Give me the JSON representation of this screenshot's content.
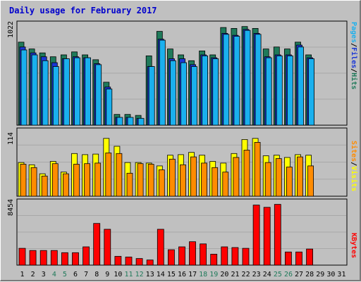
{
  "title": "Daily usage for February 2017",
  "colors": {
    "background": "#c0c0c0",
    "hits": "#1f7a5a",
    "files": "#1a37d6",
    "pages": "#1ab0ee",
    "sites": "#ff8c00",
    "visits": "#ffff00",
    "kbytes": "#ff0000",
    "weekday_label": "#000000",
    "weekend_label": "#1f7a5a"
  },
  "chart_data": [
    {
      "type": "bar",
      "name": "hits-files-pages",
      "ymax_label": "1022",
      "legend": [
        "Pages",
        "/",
        "Files",
        "/",
        "Hits"
      ],
      "series": [
        {
          "name": "Hits",
          "values": [
            850,
            780,
            740,
            700,
            720,
            750,
            720,
            670,
            440,
            110,
            110,
            100,
            100,
            0,
            0,
            0,
            0,
            0,
            0,
            0,
            0,
            0,
            0,
            0,
            0,
            0,
            0,
            0
          ]
        },
        {
          "name": "Files",
          "values": [
            800,
            740,
            700,
            640,
            680,
            700,
            690,
            630,
            390,
            80,
            80,
            70,
            70,
            0,
            0,
            0,
            0,
            0,
            0,
            0,
            0,
            0,
            0,
            0,
            0,
            0,
            0,
            0
          ]
        },
        {
          "name": "Pages",
          "values": [
            770,
            720,
            660,
            600,
            680,
            690,
            690,
            620,
            370,
            80,
            80,
            70,
            70,
            0,
            0,
            0,
            0,
            0,
            0,
            0,
            0,
            0,
            0,
            0,
            0,
            0,
            0,
            0
          ]
        }
      ],
      "extra": {
        "hits_tail": [
          710,
          960,
          780,
          720,
          660,
          760,
          720,
          1000,
          990,
          1010,
          990,
          780,
          800,
          780,
          850,
          720
        ],
        "files_tail": [
          600,
          880,
          680,
          680,
          620,
          720,
          690,
          940,
          920,
          980,
          940,
          700,
          720,
          720,
          820,
          690
        ],
        "pages_tail": [
          600,
          870,
          660,
          640,
          600,
          710,
          680,
          930,
          910,
          970,
          930,
          690,
          710,
          710,
          800,
          680
        ]
      }
    },
    {
      "type": "bar",
      "name": "sites-visits",
      "ymax_label": "114",
      "legend": [
        "Sites",
        "/",
        "Visits"
      ],
      "series": [
        {
          "name": "Visits",
          "values": [
            60,
            56,
            40,
            62,
            43,
            76,
            74,
            75,
            103,
            89,
            60,
            60,
            59,
            54,
            73,
            74,
            78,
            73,
            62,
            59,
            76,
            101,
            103,
            72,
            73,
            69,
            74,
            73,
            70,
            81,
            74
          ]
        },
        {
          "name": "Sites",
          "values": [
            57,
            51,
            36,
            58,
            40,
            57,
            58,
            59,
            77,
            76,
            41,
            58,
            57,
            47,
            66,
            56,
            70,
            59,
            51,
            43,
            69,
            82,
            96,
            60,
            67,
            52,
            70,
            54,
            64,
            66,
            61
          ]
        }
      ]
    },
    {
      "type": "bar",
      "name": "kbytes",
      "ymax_label": "8454",
      "legend": [
        "KBytes"
      ],
      "series": [
        {
          "name": "KBytes",
          "values": [
            2300,
            2000,
            2000,
            2000,
            1700,
            1700,
            2500,
            5700,
            4900,
            1200,
            1100,
            900,
            700,
            4900,
            2100,
            2500,
            3200,
            2900,
            1500,
            2500,
            2400,
            2300,
            8200,
            7900,
            8300,
            1800,
            1800,
            2200,
            0,
            0,
            0
          ]
        }
      ]
    }
  ],
  "x_axis": {
    "days": [
      "1",
      "2",
      "3",
      "4",
      "5",
      "6",
      "7",
      "8",
      "9",
      "10",
      "11",
      "12",
      "13",
      "14",
      "15",
      "16",
      "17",
      "18",
      "19",
      "20",
      "21",
      "22",
      "23",
      "24",
      "25",
      "26",
      "27",
      "28",
      "29",
      "30",
      "31"
    ],
    "weekend_days": [
      4,
      5,
      11,
      12,
      18,
      19,
      25,
      26
    ]
  }
}
